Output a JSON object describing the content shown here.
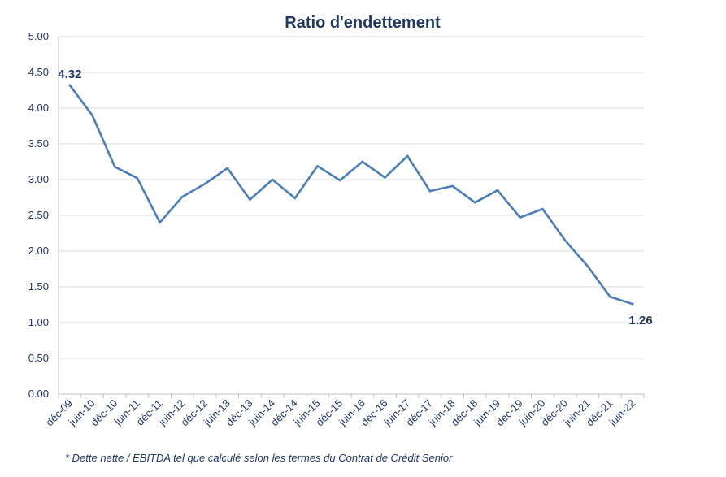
{
  "chart_data": {
    "type": "line",
    "title": "Ratio d'endettement",
    "xlabel": "",
    "ylabel": "",
    "categories": [
      "déc-09",
      "juin-10",
      "déc-10",
      "juin-11",
      "déc-11",
      "juin-12",
      "déc-12",
      "juin-13",
      "déc-13",
      "juin-14",
      "déc-14",
      "juin-15",
      "déc-15",
      "juin-16",
      "déc-16",
      "juin-17",
      "déc-17",
      "juin-18",
      "déc-18",
      "juin-19",
      "déc-19",
      "juin-20",
      "déc-20",
      "juin-21",
      "déc-21",
      "juin-22"
    ],
    "series": [
      {
        "values": [
          4.32,
          3.9,
          3.18,
          3.02,
          2.4,
          2.76,
          2.94,
          3.16,
          2.72,
          3.0,
          2.74,
          3.19,
          2.99,
          3.25,
          3.03,
          3.33,
          2.84,
          2.91,
          2.68,
          2.85,
          2.47,
          2.59,
          2.15,
          1.79,
          1.36,
          1.26
        ]
      }
    ],
    "data_labels": [
      {
        "index": 0,
        "text": "4.32"
      },
      {
        "index": 25,
        "text": "1.26"
      }
    ],
    "ylim": [
      0,
      5
    ],
    "yticks": [
      "0.00",
      "0.50",
      "1.00",
      "1.50",
      "2.00",
      "2.50",
      "3.00",
      "3.50",
      "4.00",
      "4.50",
      "5.00"
    ],
    "grid": true,
    "legend": "none",
    "colors": {
      "line": "#4a7ebb",
      "text": "#1f3864",
      "grid": "#d9d9d9",
      "axis": "#bfbfbf"
    }
  },
  "footnote": "* Dette nette / EBITDA tel que calculé selon les termes du Contrat de Crédit Senior"
}
